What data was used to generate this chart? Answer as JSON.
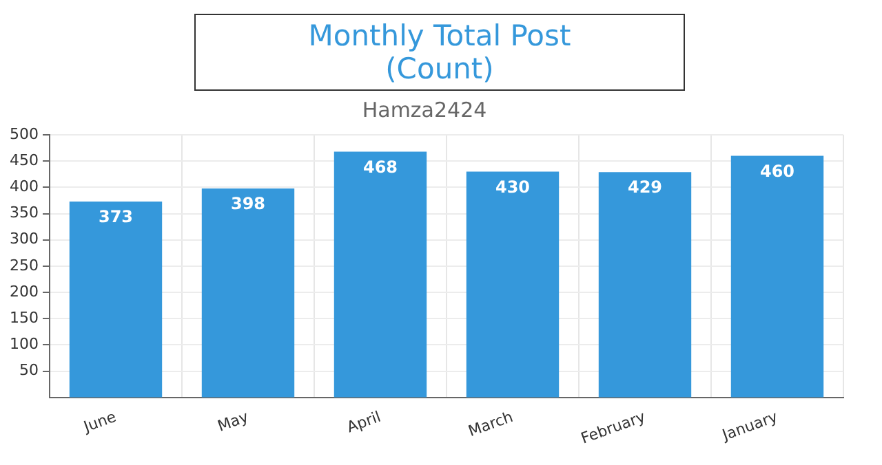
{
  "chart_data": {
    "type": "bar",
    "title": "Monthly Total Post\n(Count)",
    "subtitle": "Hamza2424",
    "categories": [
      "June",
      "May",
      "April",
      "March",
      "February",
      "January"
    ],
    "values": [
      373,
      398,
      468,
      430,
      429,
      460
    ],
    "color": "#3598db",
    "ylim": [
      0,
      500
    ],
    "yticks": [
      50,
      100,
      150,
      200,
      250,
      300,
      350,
      400,
      450,
      500
    ],
    "grid": true,
    "data_labels": true
  }
}
